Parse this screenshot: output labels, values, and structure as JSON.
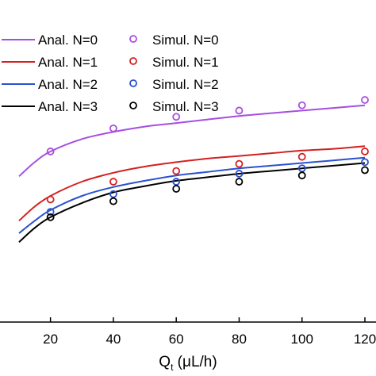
{
  "chart_data": {
    "type": "line",
    "title": "",
    "xlabel": "Q",
    "xlabel_sub": "t",
    "xlabel_unit": " (μL/h)",
    "ylabel": "",
    "xlim": [
      10,
      120
    ],
    "ylim": [
      0,
      1
    ],
    "x_ticks": [
      20,
      40,
      60,
      80,
      100,
      120
    ],
    "x_tick_labels": [
      "20",
      "40",
      "60",
      "80",
      "100",
      "120"
    ],
    "grid": false,
    "legend_position": "top-left",
    "colors": {
      "N0": "#a64ee0",
      "N1": "#d42020",
      "N2": "#2a52cf",
      "N3": "#000000"
    },
    "analytical": [
      {
        "name": "Anal. N=0",
        "color_key": "N0",
        "x": [
          10,
          15,
          20,
          30,
          40,
          50,
          60,
          70,
          80,
          90,
          100,
          110,
          120
        ],
        "y": [
          0.57,
          0.65,
          0.71,
          0.78,
          0.82,
          0.85,
          0.87,
          0.89,
          0.91,
          0.925,
          0.94,
          0.955,
          0.97
        ]
      },
      {
        "name": "Anal. N=1",
        "color_key": "N1",
        "x": [
          10,
          15,
          20,
          30,
          40,
          50,
          60,
          70,
          80,
          90,
          100,
          110,
          120
        ],
        "y": [
          0.32,
          0.4,
          0.46,
          0.54,
          0.59,
          0.625,
          0.65,
          0.67,
          0.685,
          0.7,
          0.715,
          0.725,
          0.74
        ]
      },
      {
        "name": "Anal. N=2",
        "color_key": "N2",
        "x": [
          10,
          15,
          20,
          30,
          40,
          50,
          60,
          70,
          80,
          90,
          100,
          110,
          120
        ],
        "y": [
          0.25,
          0.32,
          0.38,
          0.46,
          0.51,
          0.545,
          0.575,
          0.595,
          0.615,
          0.63,
          0.645,
          0.66,
          0.675
        ]
      },
      {
        "name": "Anal. N=3",
        "color_key": "N3",
        "x": [
          10,
          15,
          20,
          30,
          40,
          50,
          60,
          70,
          80,
          90,
          100,
          110,
          120
        ],
        "y": [
          0.2,
          0.28,
          0.34,
          0.42,
          0.48,
          0.515,
          0.545,
          0.565,
          0.585,
          0.6,
          0.615,
          0.63,
          0.645
        ]
      }
    ],
    "simulated": [
      {
        "name": "Simul. N=0",
        "color_key": "N0",
        "x": [
          20,
          40,
          60,
          80,
          100,
          120
        ],
        "y": [
          0.71,
          0.84,
          0.905,
          0.94,
          0.97,
          1.0
        ]
      },
      {
        "name": "Simul. N=1",
        "color_key": "N1",
        "x": [
          20,
          40,
          60,
          80,
          100,
          120
        ],
        "y": [
          0.44,
          0.54,
          0.6,
          0.64,
          0.68,
          0.71
        ]
      },
      {
        "name": "Simul. N=2",
        "color_key": "N2",
        "x": [
          20,
          40,
          60,
          80,
          100,
          120
        ],
        "y": [
          0.37,
          0.47,
          0.54,
          0.585,
          0.615,
          0.65
        ]
      },
      {
        "name": "Simul. N=3",
        "color_key": "N3",
        "x": [
          20,
          40,
          60,
          80,
          100,
          120
        ],
        "y": [
          0.34,
          0.43,
          0.5,
          0.54,
          0.575,
          0.605
        ]
      }
    ]
  }
}
